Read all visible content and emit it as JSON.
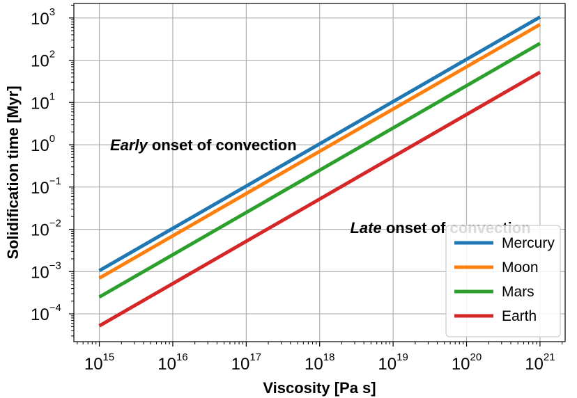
{
  "chart_data": {
    "type": "line",
    "xscale": "log",
    "yscale": "log",
    "xlabel": "Viscosity [Pa s]",
    "ylabel": "Solidification time [Myr]",
    "xlim": [
      450000000000000.0,
      2.2e+21
    ],
    "ylim": [
      2.2e-05,
      2200.0
    ],
    "grid": true,
    "legend_position": "lower-right",
    "x_ticks": [
      {
        "base": "10",
        "exp": "15",
        "value": 1000000000000000.0
      },
      {
        "base": "10",
        "exp": "16",
        "value": 1e+16
      },
      {
        "base": "10",
        "exp": "17",
        "value": 1e+17
      },
      {
        "base": "10",
        "exp": "18",
        "value": 1e+18
      },
      {
        "base": "10",
        "exp": "19",
        "value": 1e+19
      },
      {
        "base": "10",
        "exp": "20",
        "value": 1e+20
      },
      {
        "base": "10",
        "exp": "21",
        "value": 1e+21
      }
    ],
    "y_ticks": [
      {
        "base": "10",
        "exp": "−4",
        "value": 0.0001
      },
      {
        "base": "10",
        "exp": "−3",
        "value": 0.001
      },
      {
        "base": "10",
        "exp": "−2",
        "value": 0.01
      },
      {
        "base": "10",
        "exp": "−1",
        "value": 0.1
      },
      {
        "base": "10",
        "exp": "0",
        "value": 1.0
      },
      {
        "base": "10",
        "exp": "1",
        "value": 10.0
      },
      {
        "base": "10",
        "exp": "2",
        "value": 100.0
      },
      {
        "base": "10",
        "exp": "3",
        "value": 1000.0
      }
    ],
    "series": [
      {
        "name": "Mercury",
        "color": "#1f77b4",
        "x": [
          1000000000000000.0,
          1e+21
        ],
        "y": [
          0.00105,
          1050
        ]
      },
      {
        "name": "Moon",
        "color": "#ff7f0e",
        "x": [
          1000000000000000.0,
          1e+21
        ],
        "y": [
          0.0007,
          700
        ]
      },
      {
        "name": "Mars",
        "color": "#2ca02c",
        "x": [
          1000000000000000.0,
          1e+21
        ],
        "y": [
          0.00025,
          250
        ]
      },
      {
        "name": "Earth",
        "color": "#d62728",
        "x": [
          1000000000000000.0,
          1e+21
        ],
        "y": [
          5.2e-05,
          52
        ]
      }
    ],
    "annotations": [
      {
        "id": "early",
        "emph": "Early",
        "rest": " onset of convection",
        "x": 1400000000000000.0,
        "y": 1.0
      },
      {
        "id": "late",
        "emph": "Late",
        "rest": " onset of convection",
        "x": 2.6e+18,
        "y": 0.011
      }
    ]
  }
}
